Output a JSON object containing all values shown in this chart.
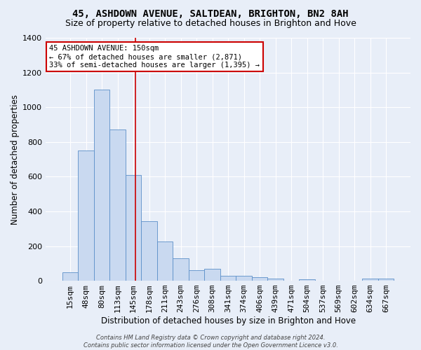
{
  "title1": "45, ASHDOWN AVENUE, SALTDEAN, BRIGHTON, BN2 8AH",
  "title2": "Size of property relative to detached houses in Brighton and Hove",
  "xlabel": "Distribution of detached houses by size in Brighton and Hove",
  "ylabel": "Number of detached properties",
  "categories": [
    "15sqm",
    "48sqm",
    "80sqm",
    "113sqm",
    "145sqm",
    "178sqm",
    "211sqm",
    "243sqm",
    "276sqm",
    "308sqm",
    "341sqm",
    "374sqm",
    "406sqm",
    "439sqm",
    "471sqm",
    "504sqm",
    "537sqm",
    "569sqm",
    "602sqm",
    "634sqm",
    "667sqm"
  ],
  "values": [
    48,
    750,
    1100,
    870,
    610,
    345,
    225,
    130,
    60,
    68,
    30,
    27,
    20,
    13,
    0,
    10,
    0,
    0,
    0,
    12,
    12
  ],
  "bar_color": "#c9d9f0",
  "bar_edge_color": "#5b8fc9",
  "vline_color": "#cc0000",
  "vline_x_index": 4,
  "annotation_text": "45 ASHDOWN AVENUE: 150sqm\n← 67% of detached houses are smaller (2,871)\n33% of semi-detached houses are larger (1,395) →",
  "annotation_box_color": "#ffffff",
  "annotation_box_edge": "#cc0000",
  "ylim": [
    0,
    1400
  ],
  "yticks": [
    0,
    200,
    400,
    600,
    800,
    1000,
    1200,
    1400
  ],
  "footer": "Contains HM Land Registry data © Crown copyright and database right 2024.\nContains public sector information licensed under the Open Government Licence v3.0.",
  "bg_color": "#e8eef8",
  "grid_color": "#ffffff",
  "title_fontsize": 10,
  "subtitle_fontsize": 9,
  "axis_label_fontsize": 8.5,
  "tick_fontsize": 8,
  "annotation_fontsize": 7.5,
  "footer_fontsize": 6
}
